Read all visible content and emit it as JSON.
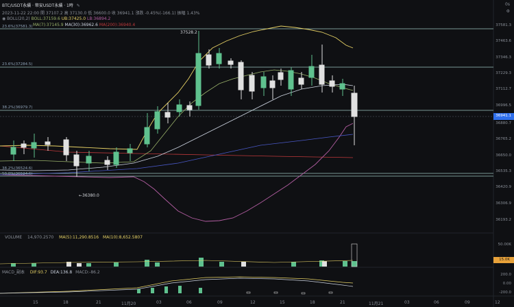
{
  "header": {
    "title": "BTC/USDT永續 · 幣安USDT永續 · 1時",
    "edit_icon": "pencil-icon",
    "time_label": "0s",
    "settings_icon": "gear-icon"
  },
  "ohlc_line": "2023-11-22 22:00  開 37107.2  高 37130.0  低 36600.0  收 36941.1  漲跌 -0.45%(-166.1)  振幅 1.43%",
  "boll_line": {
    "label": "BOLL(20,2)",
    "boll": "BOLL:37159.6",
    "ub": "UB:37425.0",
    "lb": "LB:36894.2"
  },
  "ma_line": {
    "ma7": "MA(7):37145.9",
    "ma30": "MA(30):36962.6",
    "ma200": "MA(200):36940.4"
  },
  "price_axis": [
    "37581.3",
    "37463.6",
    "37346.3",
    "37229.3",
    "37112.7",
    "36996.5",
    "36880.7",
    "36765.2",
    "36650.0",
    "36535.3",
    "36420.9",
    "36306.9",
    "36193.2"
  ],
  "current_price": "36941.1",
  "fib_levels": [
    {
      "label": "23.6%(37581.3)"
    },
    {
      "label": "23.6%(37284.5)"
    },
    {
      "label": "38.2%(36979.7)"
    },
    {
      "label": "38.2%(36524.6)"
    },
    {
      "label": "50.0%(36524.6)"
    }
  ],
  "annotations": {
    "high": "37528.2",
    "low": "36380.0"
  },
  "volume": {
    "label": "VOLUME",
    "values": "14,970.2570",
    "ma5": "MA(5):11,290.8516",
    "ma10": "MA(10):8,652.5807",
    "axis_top": "50.00K",
    "current_tag": "15.0K"
  },
  "macd": {
    "label": "MACD_副本",
    "dif": "DIF:93.7",
    "dea": "DEA:136.8",
    "macd_val": "MACD:-86.2",
    "axis": [
      "200.0",
      "0.00",
      "-200.0"
    ]
  },
  "time_axis": [
    "15",
    "18",
    "21",
    "11月20",
    "03",
    "06",
    "09",
    "12",
    "15",
    "18",
    "21",
    "11月21",
    "03",
    "06",
    "09",
    "12"
  ],
  "colors": {
    "up": "#5fc18e",
    "down": "#e0e0e0",
    "ub": "#e8d366",
    "boll": "#9bb36b",
    "lb": "#b45ea3",
    "ma30": "#cfd6e3",
    "ma200": "#c0393b",
    "current": "#2f6feb",
    "vol_tag": "#e8a23a"
  }
}
